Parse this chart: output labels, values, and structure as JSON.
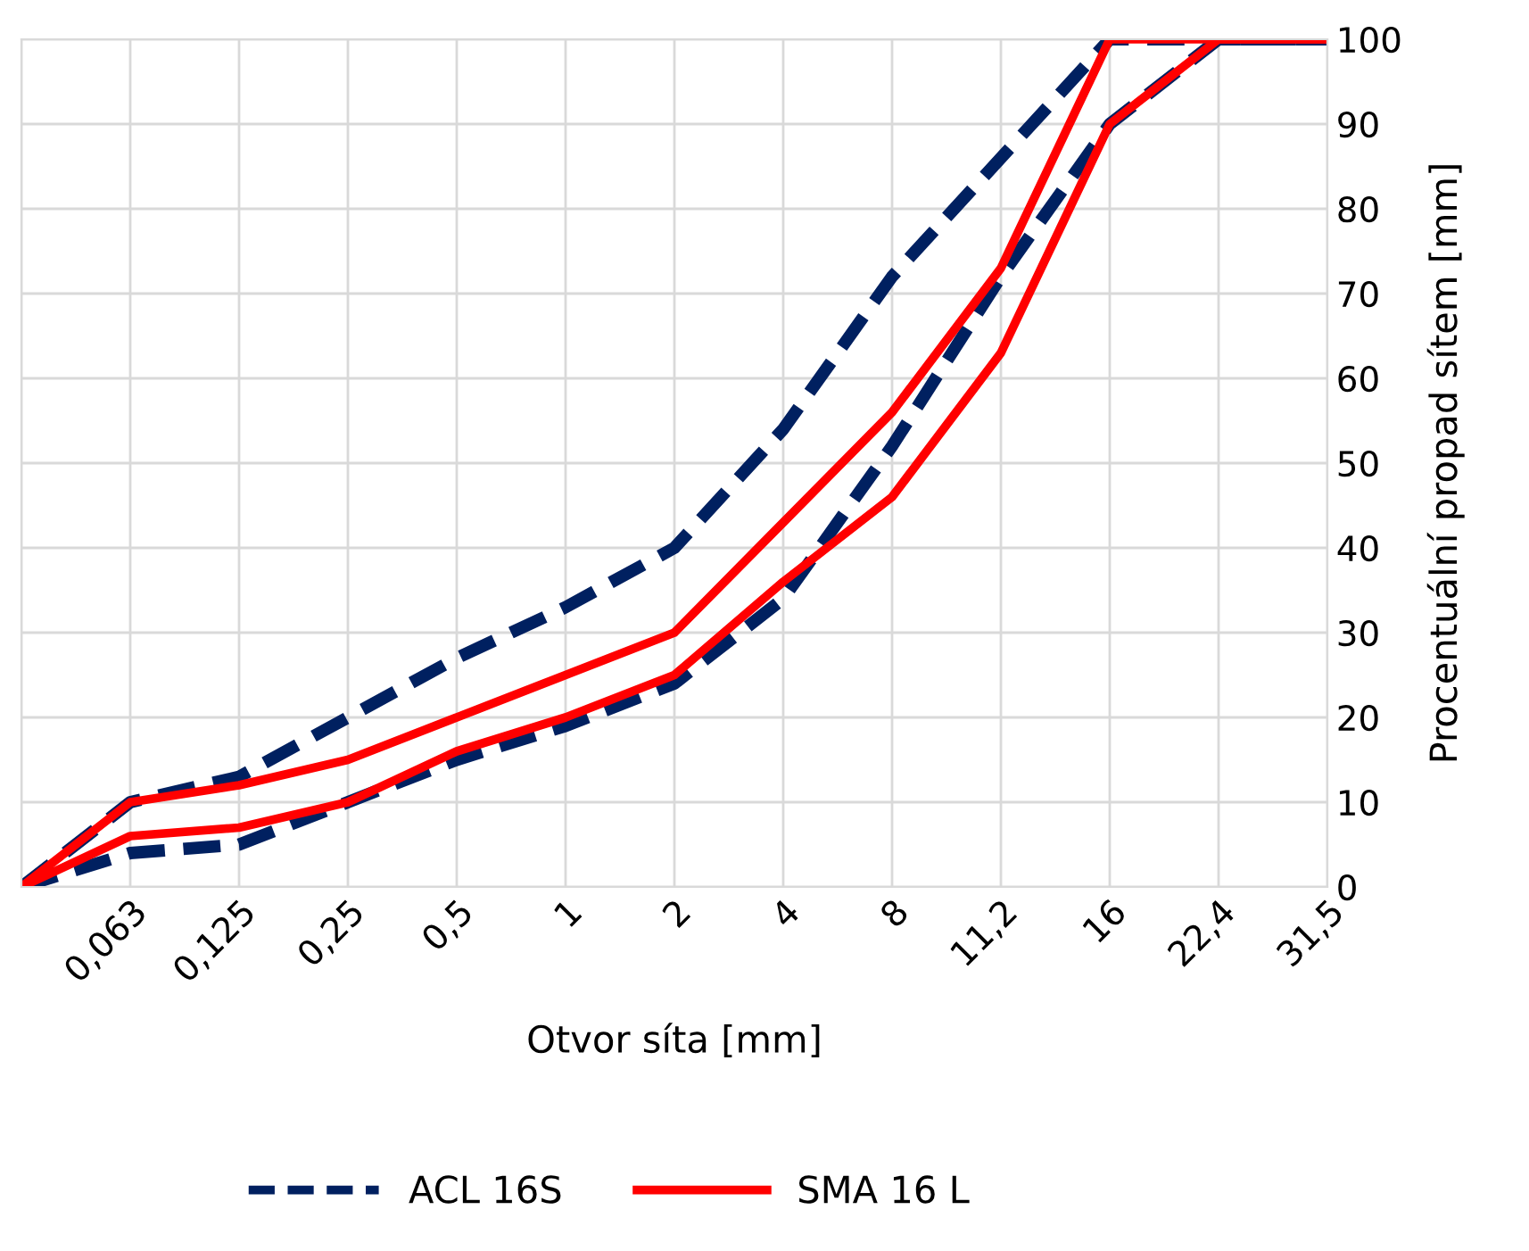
{
  "chart_data": {
    "type": "line",
    "xlabel": "Otvor síta [mm]",
    "ylabel": "Procentuální propad sítem [mm]",
    "categories": [
      null,
      "0,063",
      "0,125",
      "0,25",
      "0,5",
      "1",
      "2",
      "4",
      "8",
      "11,2",
      "16",
      "22,4",
      "31,5"
    ],
    "series": [
      {
        "name": "ACL 16S",
        "color": "#002060",
        "line_style": "dashed",
        "values": [
          0,
          10,
          13,
          20,
          27,
          33,
          40,
          54,
          72,
          86,
          100,
          100,
          100
        ]
      },
      {
        "color": "#002060",
        "line_style": "dashed",
        "values": [
          0,
          4,
          5,
          10,
          15,
          19,
          24,
          34,
          52,
          72,
          90,
          100,
          100
        ]
      },
      {
        "name": "SMA 16 L",
        "color": "#ff0000",
        "line_style": "solid",
        "values": [
          0,
          10,
          12,
          15,
          20,
          25,
          30,
          43,
          56,
          73,
          100,
          100,
          100
        ]
      },
      {
        "color": "#ff0000",
        "line_style": "solid",
        "values": [
          0,
          6,
          7,
          10,
          16,
          20,
          25,
          36,
          46,
          63,
          90,
          100,
          100
        ]
      }
    ],
    "ylim": [
      0,
      100
    ],
    "yticks": [
      0,
      10,
      20,
      30,
      40,
      50,
      60,
      70,
      80,
      90,
      100
    ],
    "grid": true,
    "legend": "bottom",
    "marker": "none"
  }
}
